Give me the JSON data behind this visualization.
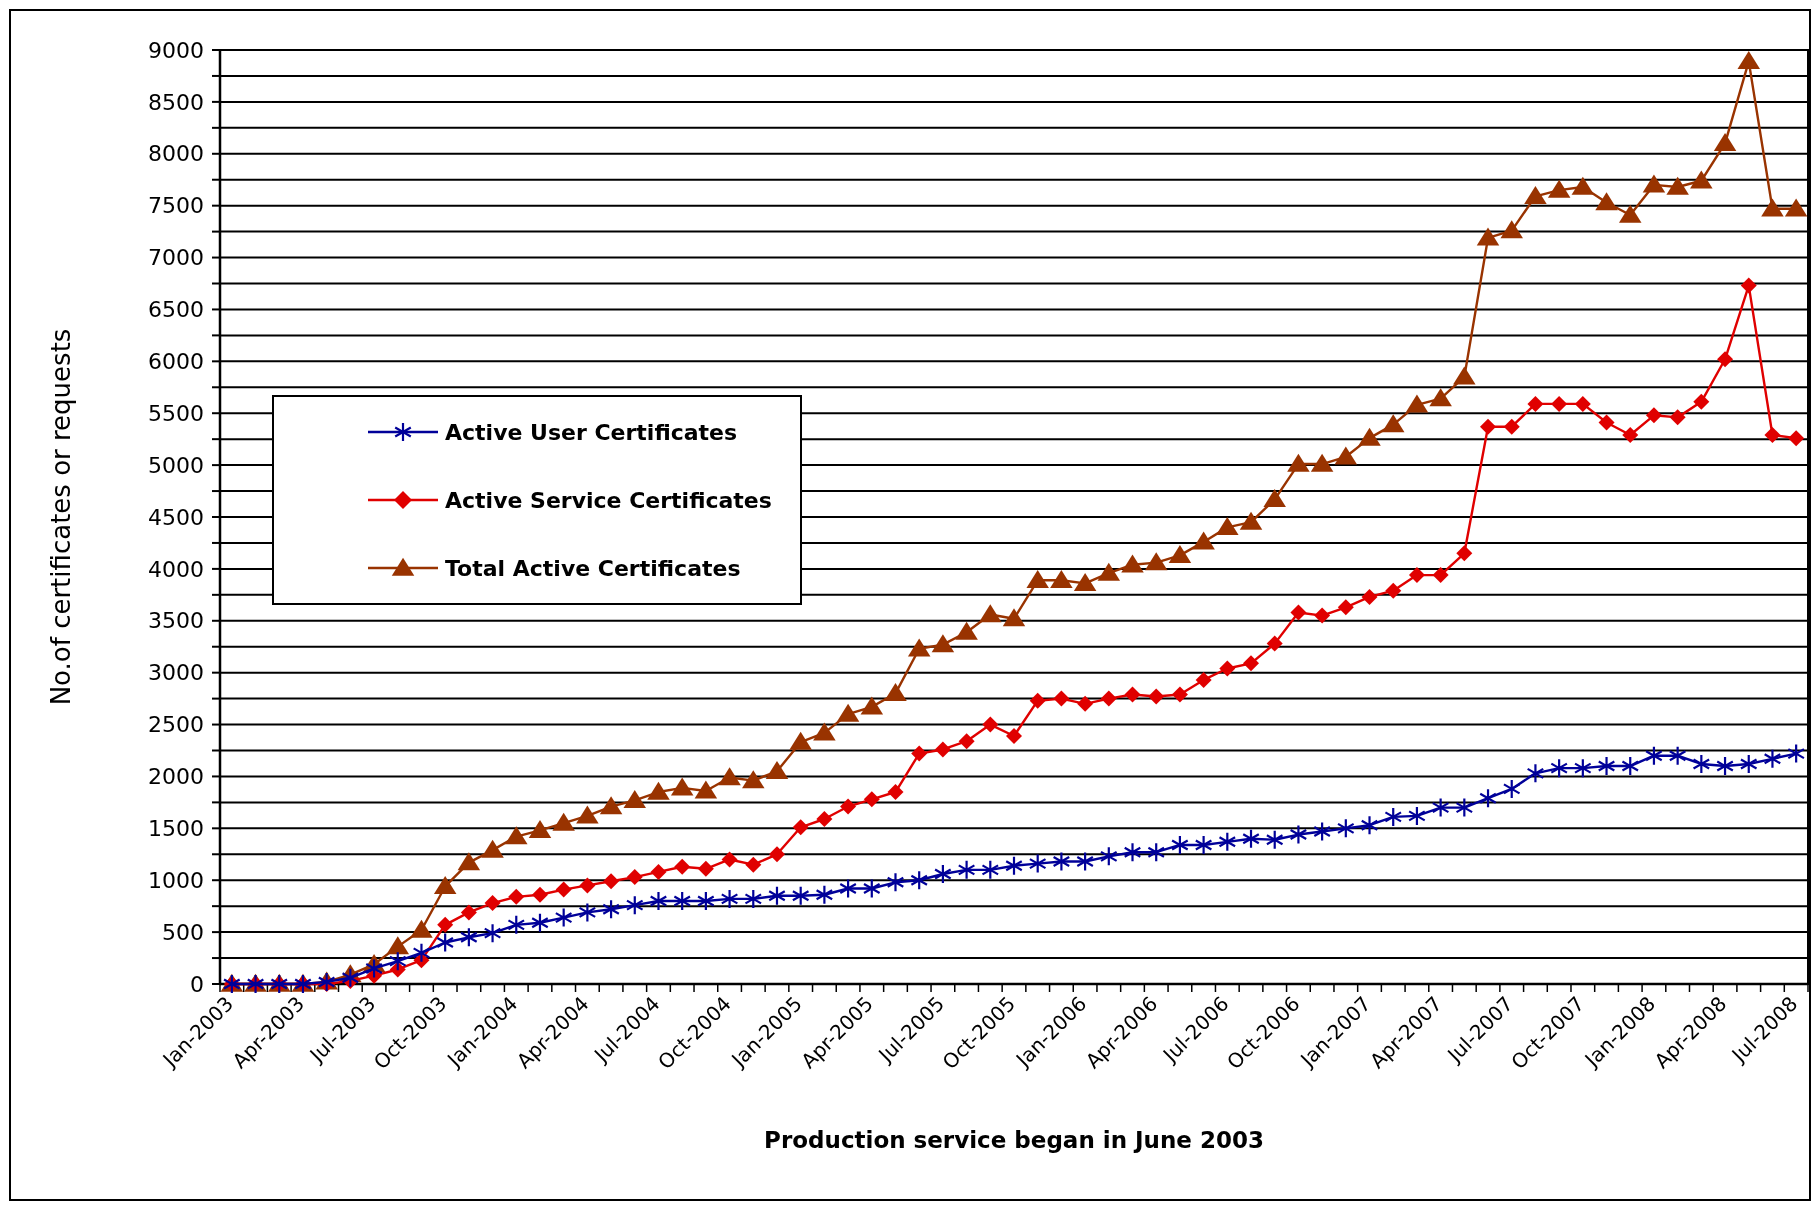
{
  "chart_data": {
    "type": "line",
    "xlabel": "Production service began in June 2003",
    "ylabel": "No.of certificates or requests",
    "categories": [
      "Jan-2003",
      null,
      null,
      "Apr-2003",
      null,
      null,
      "Jul-2003",
      null,
      null,
      "Oct-2003",
      null,
      null,
      "Jan-2004",
      null,
      null,
      "Apr-2004",
      null,
      null,
      "Jul-2004",
      null,
      null,
      "Oct-2004",
      null,
      null,
      "Jan-2005",
      null,
      null,
      "Apr-2005",
      null,
      null,
      "Jul-2005",
      null,
      null,
      "Oct-2005",
      null,
      null,
      "Jan-2006",
      null,
      null,
      "Apr-2006",
      null,
      null,
      "Jul-2006",
      null,
      null,
      "Oct-2006",
      null,
      null,
      "Jan-2007",
      null,
      null,
      "Apr-2007",
      null,
      null,
      "Jul-2007",
      null,
      null,
      "Oct-2007",
      null,
      null,
      "Jan-2008",
      null,
      null,
      "Apr-2008",
      null,
      null,
      "Jul-2008"
    ],
    "series": [
      {
        "name": "Active User Certificates",
        "color": "#000099",
        "marker": "cross",
        "values": [
          0,
          0,
          0,
          0,
          20,
          60,
          150,
          220,
          300,
          400,
          450,
          490,
          570,
          590,
          640,
          690,
          720,
          760,
          800,
          800,
          800,
          820,
          820,
          850,
          850,
          860,
          920,
          920,
          980,
          1000,
          1060,
          1100,
          1100,
          1140,
          1160,
          1180,
          1180,
          1230,
          1270,
          1270,
          1340,
          1340,
          1370,
          1400,
          1390,
          1440,
          1470,
          1500,
          1530,
          1610,
          1620,
          1700,
          1700,
          1790,
          1880,
          2030,
          2080,
          2080,
          2100,
          2100,
          2200,
          2200,
          2120,
          2100,
          2120,
          2170,
          2220
        ]
      },
      {
        "name": "Active Service Certificates",
        "color": "#e00000",
        "marker": "diamond",
        "values": [
          0,
          0,
          0,
          0,
          0,
          30,
          80,
          140,
          230,
          570,
          690,
          780,
          840,
          860,
          910,
          950,
          990,
          1030,
          1080,
          1130,
          1110,
          1200,
          1150,
          1250,
          1510,
          1590,
          1710,
          1780,
          1850,
          2220,
          2260,
          2340,
          2500,
          2390,
          2730,
          2750,
          2700,
          2750,
          2790,
          2770,
          2790,
          2930,
          3040,
          3090,
          3280,
          3580,
          3550,
          3630,
          3730,
          3790,
          3940,
          3940,
          4150,
          5370,
          5370,
          5590,
          5590,
          5590,
          5410,
          5290,
          5480,
          5460,
          5610,
          6020,
          6730,
          5290,
          5260
        ]
      },
      {
        "name": "Total Active Certificates",
        "color": "#993300",
        "marker": "triangle",
        "values": [
          0,
          0,
          0,
          0,
          20,
          90,
          190,
          360,
          520,
          940,
          1170,
          1290,
          1420,
          1480,
          1550,
          1620,
          1710,
          1770,
          1850,
          1890,
          1860,
          1990,
          1960,
          2050,
          2330,
          2420,
          2600,
          2670,
          2800,
          3230,
          3270,
          3390,
          3560,
          3520,
          3890,
          3890,
          3860,
          3960,
          4040,
          4060,
          4130,
          4260,
          4400,
          4450,
          4670,
          5010,
          5010,
          5080,
          5260,
          5390,
          5580,
          5640,
          5850,
          7190,
          7260,
          7590,
          7650,
          7680,
          7530,
          7410,
          7700,
          7680,
          7740,
          8100,
          8890,
          7470,
          7470
        ]
      }
    ],
    "ylim": [
      0,
      9000
    ],
    "yticks": [
      0,
      {
        "value": 250,
        "label": null
      },
      500,
      {
        "value": 750,
        "label": null
      },
      1000,
      {
        "value": 1250,
        "label": null
      },
      1500,
      {
        "value": 1750,
        "label": null
      },
      2000,
      {
        "value": 2250,
        "label": null
      },
      2500,
      {
        "value": 2750,
        "label": null
      },
      3000,
      {
        "value": 3250,
        "label": null
      },
      3500,
      {
        "value": 3750,
        "label": null
      },
      4000,
      {
        "value": 4250,
        "label": null
      },
      4500,
      {
        "value": 4750,
        "label": null
      },
      5000,
      {
        "value": 5250,
        "label": null
      },
      5500,
      {
        "value": 5750,
        "label": null
      },
      6000,
      {
        "value": 6250,
        "label": null
      },
      6500,
      {
        "value": 6750,
        "label": null
      },
      7000,
      {
        "value": 7250,
        "label": null
      },
      7500,
      {
        "value": 7750,
        "label": null
      },
      8000,
      {
        "value": 8250,
        "label": null
      },
      8500,
      {
        "value": 8750,
        "label": null
      },
      9000
    ],
    "grid": "y",
    "legend": "left",
    "line_style": "solid"
  }
}
